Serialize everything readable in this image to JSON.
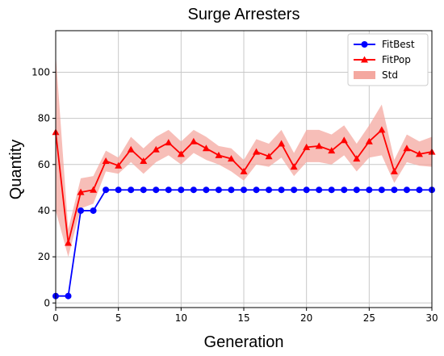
{
  "chart_data": {
    "type": "line",
    "title": "Surge Arresters",
    "xlabel": "Generation",
    "ylabel": "Quantity",
    "xlim": [
      0,
      30
    ],
    "ylim": [
      -2,
      118
    ],
    "xticks": [
      0,
      5,
      10,
      15,
      20,
      25,
      30
    ],
    "yticks": [
      0,
      20,
      40,
      60,
      80,
      100
    ],
    "grid": true,
    "legend_position": "top-right",
    "x": [
      0,
      1,
      2,
      3,
      4,
      5,
      6,
      7,
      8,
      9,
      10,
      11,
      12,
      13,
      14,
      15,
      16,
      17,
      18,
      19,
      20,
      21,
      22,
      23,
      24,
      25,
      26,
      27,
      28,
      29,
      30
    ],
    "series": [
      {
        "name": "FitBest",
        "color": "#0000ff",
        "marker": "circle",
        "values": [
          3,
          3,
          40,
          40,
          49,
          49,
          49,
          49,
          49,
          49,
          49,
          49,
          49,
          49,
          49,
          49,
          49,
          49,
          49,
          49,
          49,
          49,
          49,
          49,
          49,
          49,
          49,
          49,
          49,
          49,
          49
        ]
      },
      {
        "name": "FitPop",
        "color": "#ff0000",
        "marker": "triangle",
        "values": [
          74,
          26,
          48,
          49,
          61.5,
          59.5,
          66.5,
          61.5,
          66.5,
          69.5,
          64.5,
          70,
          67,
          64,
          62.5,
          57,
          65.5,
          63.5,
          69,
          59,
          67.5,
          68,
          66,
          70.5,
          62.5,
          70,
          75,
          57,
          67,
          64.5,
          65.5
        ]
      }
    ],
    "band": {
      "name": "Std",
      "color": "#f4a8a0",
      "lower": [
        40,
        20,
        41,
        43,
        57,
        56,
        61,
        56,
        61,
        64,
        60,
        65,
        62,
        60,
        57,
        53,
        60,
        59,
        63,
        55,
        61,
        61,
        60,
        64,
        57,
        63,
        64,
        52,
        61,
        59.5,
        59
      ],
      "upper": [
        108,
        32,
        54,
        55,
        66,
        63,
        72,
        67,
        72,
        75,
        70,
        75,
        72,
        68,
        67,
        62,
        71,
        69,
        75,
        65,
        75,
        75,
        73,
        77,
        69,
        77,
        86,
        62,
        73,
        70,
        72
      ]
    }
  }
}
